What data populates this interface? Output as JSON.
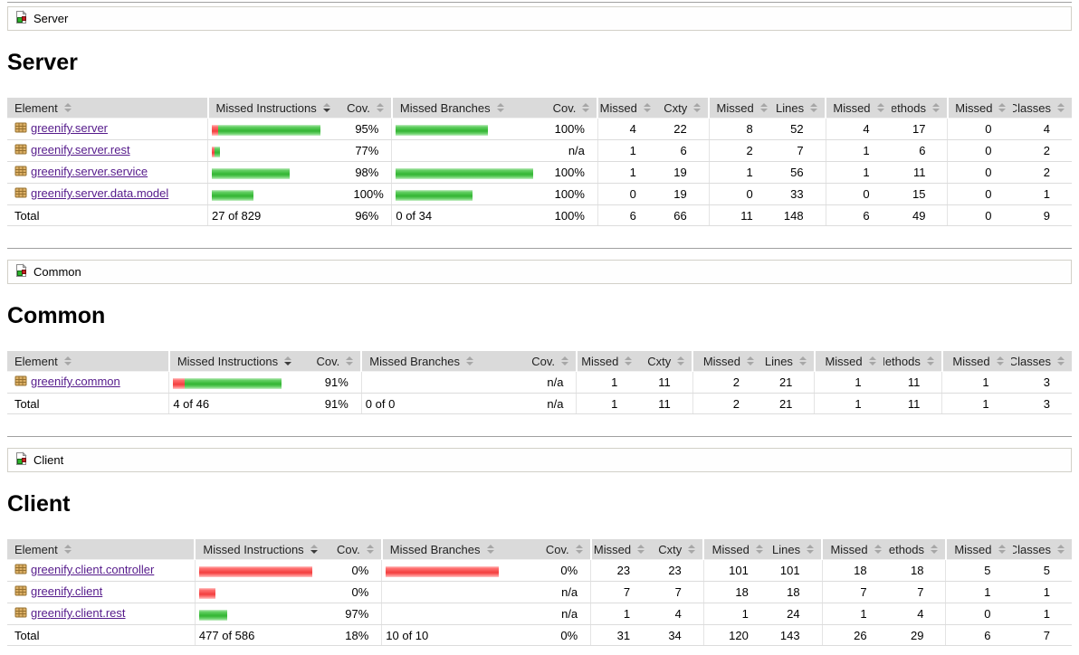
{
  "colors": {
    "bar_green": "#3ebd3e",
    "bar_red": "#f74e4e",
    "link": "#551a8b",
    "header_bg": "#dadada"
  },
  "headers": [
    {
      "label": "Element",
      "sorted": false
    },
    {
      "label": "Missed Instructions",
      "sorted": true
    },
    {
      "label": "Cov.",
      "sorted": false
    },
    {
      "label": "Missed Branches",
      "sorted": false
    },
    {
      "label": "Cov.",
      "sorted": false
    },
    {
      "label": "Missed",
      "sorted": false
    },
    {
      "label": "Cxty",
      "sorted": false
    },
    {
      "label": "Missed",
      "sorted": false
    },
    {
      "label": "Lines",
      "sorted": false
    },
    {
      "label": "Missed",
      "sorted": false
    },
    {
      "label": "Methods",
      "sorted": false
    },
    {
      "label": "Missed",
      "sorted": false
    },
    {
      "label": "Classes",
      "sorted": false
    }
  ],
  "sections": [
    {
      "id": "server",
      "breadcrumb": "Server",
      "heading": "Server",
      "element_col_width": 220,
      "rows": [
        {
          "package": "greenify.server",
          "instr_bar": {
            "red": 7,
            "green": 113
          },
          "instr_cov": "95%",
          "branch_bar": {
            "red": 0,
            "green": 102
          },
          "branch_cov": "100%",
          "values": [
            "4",
            "22",
            "8",
            "52",
            "4",
            "17",
            "0",
            "4"
          ]
        },
        {
          "package": "greenify.server.rest",
          "instr_bar": {
            "red": 3,
            "green": 6
          },
          "instr_cov": "77%",
          "branch_bar": {
            "red": 0,
            "green": 0
          },
          "branch_cov": "n/a",
          "values": [
            "1",
            "6",
            "2",
            "7",
            "1",
            "6",
            "0",
            "2"
          ]
        },
        {
          "package": "greenify.server.service",
          "instr_bar": {
            "red": 0,
            "green": 86
          },
          "instr_cov": "98%",
          "branch_bar": {
            "red": 0,
            "green": 152
          },
          "branch_cov": "100%",
          "values": [
            "1",
            "19",
            "1",
            "56",
            "1",
            "11",
            "0",
            "2"
          ]
        },
        {
          "package": "greenify.server.data.model",
          "instr_bar": {
            "red": 0,
            "green": 46
          },
          "instr_cov": "100%",
          "branch_bar": {
            "red": 0,
            "green": 85
          },
          "branch_cov": "100%",
          "values": [
            "0",
            "19",
            "0",
            "33",
            "0",
            "15",
            "0",
            "1"
          ]
        }
      ],
      "total": {
        "label": "Total",
        "instr": "27 of 829",
        "instr_cov": "96%",
        "branch": "0 of 34",
        "branch_cov": "100%",
        "values": [
          "6",
          "66",
          "11",
          "148",
          "6",
          "49",
          "0",
          "9"
        ]
      }
    },
    {
      "id": "common",
      "breadcrumb": "Common",
      "heading": "Common",
      "element_col_width": 170,
      "rows": [
        {
          "package": "greenify.common",
          "instr_bar": {
            "red": 13,
            "green": 107
          },
          "instr_cov": "91%",
          "branch_bar": {
            "red": 0,
            "green": 0
          },
          "branch_cov": "n/a",
          "values": [
            "1",
            "11",
            "2",
            "21",
            "1",
            "11",
            "1",
            "3"
          ]
        }
      ],
      "total": {
        "label": "Total",
        "instr": "4 of 46",
        "instr_cov": "91%",
        "branch": "0 of 0",
        "branch_cov": "n/a",
        "values": [
          "1",
          "11",
          "2",
          "21",
          "1",
          "11",
          "1",
          "3"
        ]
      }
    },
    {
      "id": "client",
      "breadcrumb": "Client",
      "heading": "Client",
      "element_col_width": 203,
      "rows": [
        {
          "package": "greenify.client.controller",
          "instr_bar": {
            "red": 125,
            "green": 0
          },
          "instr_cov": "0%",
          "branch_bar": {
            "red": 125,
            "green": 0
          },
          "branch_cov": "0%",
          "values": [
            "23",
            "23",
            "101",
            "101",
            "18",
            "18",
            "5",
            "5"
          ]
        },
        {
          "package": "greenify.client",
          "instr_bar": {
            "red": 18,
            "green": 0
          },
          "instr_cov": "0%",
          "branch_bar": {
            "red": 0,
            "green": 0
          },
          "branch_cov": "n/a",
          "values": [
            "7",
            "7",
            "18",
            "18",
            "7",
            "7",
            "1",
            "1"
          ]
        },
        {
          "package": "greenify.client.rest",
          "instr_bar": {
            "red": 0,
            "green": 31
          },
          "instr_cov": "97%",
          "branch_bar": {
            "red": 0,
            "green": 0
          },
          "branch_cov": "n/a",
          "values": [
            "1",
            "4",
            "1",
            "24",
            "1",
            "4",
            "0",
            "1"
          ]
        }
      ],
      "total": {
        "label": "Total",
        "instr": "477 of 586",
        "instr_cov": "18%",
        "branch": "10 of 10",
        "branch_cov": "0%",
        "values": [
          "31",
          "34",
          "120",
          "143",
          "26",
          "29",
          "6",
          "7"
        ]
      }
    }
  ]
}
